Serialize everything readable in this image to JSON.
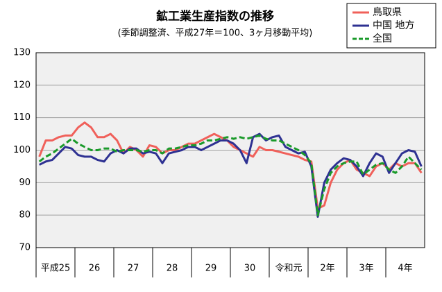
{
  "chart_data": {
    "type": "line",
    "title": "鉱工業生産指数の推移",
    "subtitle": "(季節調整済、平成27年＝100、3ヶ月移動平均)",
    "categories": [
      "平成25",
      null,
      null,
      null,
      null,
      null,
      "26",
      null,
      null,
      null,
      null,
      null,
      "27",
      null,
      null,
      null,
      null,
      null,
      "28",
      null,
      null,
      null,
      null,
      null,
      "29",
      null,
      null,
      null,
      null,
      null,
      "30",
      null,
      null,
      null,
      null,
      null,
      "令和元",
      null,
      null,
      null,
      null,
      null,
      "2年",
      null,
      null,
      null,
      null,
      null,
      "3年",
      null,
      null,
      null,
      null,
      null,
      "4年",
      null,
      null,
      null,
      null,
      null
    ],
    "series": [
      {
        "name": "鳥取県",
        "color": "#f0605a",
        "dash": false,
        "values": [
          98,
          103,
          103,
          104,
          104.5,
          104.5,
          107,
          108.5,
          107,
          104,
          104,
          105,
          103,
          99,
          101,
          100,
          98,
          101.5,
          101,
          99,
          100,
          100,
          101,
          102,
          102,
          103,
          104,
          105,
          104,
          103,
          101,
          100,
          99,
          98,
          101,
          100,
          100,
          99.5,
          99,
          98.5,
          98,
          97,
          96.5,
          82,
          83,
          90,
          94,
          96,
          97,
          94,
          93,
          92,
          95,
          96,
          94,
          96,
          95,
          96,
          96,
          93
        ]
      },
      {
        "name": "中国 地方",
        "color": "#2e3192",
        "dash": false,
        "values": [
          95.5,
          96.5,
          97,
          99,
          101,
          100.5,
          98.5,
          98,
          98,
          97,
          96.5,
          99,
          100,
          99,
          100.5,
          100.5,
          99,
          99.5,
          99,
          96,
          99,
          99.5,
          100,
          101,
          101,
          100,
          101,
          102,
          103,
          103,
          102,
          100,
          96,
          104,
          105,
          103,
          104,
          104.5,
          101,
          100,
          99,
          99.5,
          95,
          79.5,
          90,
          94,
          96,
          97.5,
          97,
          95,
          92,
          96,
          99,
          98,
          93,
          96,
          99,
          100,
          99.5,
          95
        ]
      },
      {
        "name": "全国",
        "color": "#1a9a2a",
        "dash": true,
        "values": [
          96.5,
          98,
          99,
          100.5,
          102,
          103.5,
          102,
          101,
          100,
          100,
          100.5,
          100.5,
          99.5,
          100,
          100,
          100,
          99.5,
          100,
          100,
          99,
          100.5,
          100.5,
          101,
          101.5,
          101.5,
          102,
          103,
          103,
          103.5,
          104,
          103.5,
          104,
          103.5,
          104,
          104.5,
          103.5,
          103,
          103,
          102,
          101,
          100,
          98.5,
          96,
          80,
          88,
          93,
          95,
          96,
          96.5,
          96.5,
          92.5,
          94,
          95.5,
          96,
          94,
          93,
          95,
          98,
          96,
          94
        ]
      }
    ],
    "ylim": [
      70,
      130
    ],
    "yticks": [
      70,
      80,
      90,
      100,
      110,
      120,
      130
    ],
    "grid": true
  }
}
